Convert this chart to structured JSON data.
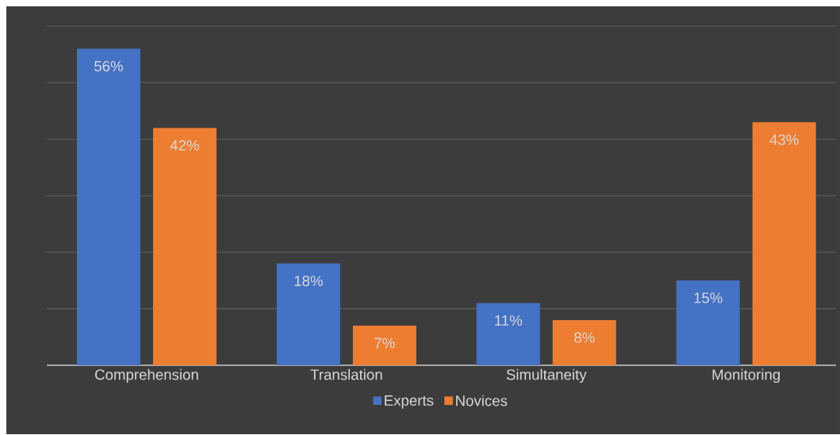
{
  "chart_data": {
    "type": "bar",
    "categories": [
      "Comprehension",
      "Translation",
      "Simultaneity",
      "Monitoring"
    ],
    "series": [
      {
        "name": "Experts",
        "color": "#4472c4",
        "values": [
          56,
          18,
          11,
          15
        ],
        "value_labels": [
          "56%",
          "18%",
          "11%",
          "15%"
        ]
      },
      {
        "name": "Novices",
        "color": "#ed7d31",
        "values": [
          42,
          7,
          8,
          43
        ],
        "value_labels": [
          "42%",
          "7%",
          "8%",
          "43%"
        ]
      }
    ],
    "ylim": [
      0,
      60
    ],
    "yticks": [
      {
        "value": 0,
        "label": null
      },
      {
        "value": 10,
        "label": null
      },
      {
        "value": 20,
        "label": null
      },
      {
        "value": 30,
        "label": null
      },
      {
        "value": 40,
        "label": null
      },
      {
        "value": 50,
        "label": null
      },
      {
        "value": 60,
        "label": null
      }
    ],
    "grid": "y",
    "legend": "bottom",
    "tick_labels": "x"
  }
}
